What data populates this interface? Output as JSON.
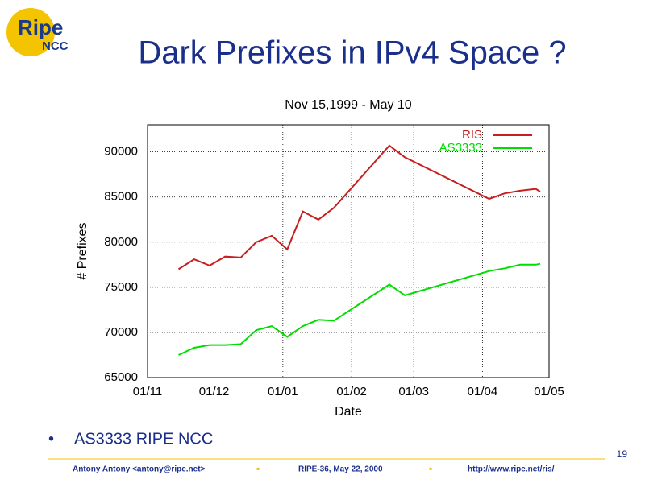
{
  "logo": {
    "text": "Ripe",
    "subtext": "NCC"
  },
  "heading": "Dark Prefixes in IPv4 Space ?",
  "bullets": [
    "AS3333 RIPE NCC"
  ],
  "page_number": "19",
  "footer": [
    "Antony Antony <antony@ripe.net>",
    "RIPE-36, May 22, 2000",
    "http://www.ripe.net/ris/"
  ],
  "chart_data": {
    "type": "line",
    "title": "Nov 15,1999 - May 10",
    "x_label": "Date",
    "y_label": "# Prefixes",
    "x": [
      "15/11",
      "22/11",
      "29/11",
      "06/12",
      "13/12",
      "20/12",
      "27/12",
      "03/01",
      "10/01",
      "17/01",
      "24/01",
      "18/02",
      "25/02",
      "04/04",
      "11/04",
      "18/04",
      "25/04",
      "27/04"
    ],
    "series": [
      {
        "name": "RIS",
        "color": "#c81e1e",
        "values": [
          77000,
          78100,
          77400,
          78400,
          78300,
          80000,
          80700,
          79200,
          83400,
          82500,
          83800,
          90700,
          89400,
          84800,
          85400,
          85700,
          85900,
          85600
        ]
      },
      {
        "name": "AS3333",
        "color": "#00dd00",
        "values": [
          67500,
          68300,
          68600,
          68600,
          68700,
          70250,
          70700,
          69500,
          70700,
          71400,
          71300,
          75300,
          74100,
          76800,
          77100,
          77500,
          77500,
          77600
        ]
      }
    ],
    "xlim": [
      "01/11",
      "01/05"
    ],
    "xticks": [
      "01/11",
      "01/12",
      "01/01",
      "01/02",
      "01/03",
      "01/04",
      "01/05"
    ],
    "ylim": [
      65000,
      93000
    ],
    "yticks": [
      65000,
      70000,
      75000,
      80000,
      85000,
      90000
    ],
    "grid": true,
    "legend": "upper right"
  }
}
